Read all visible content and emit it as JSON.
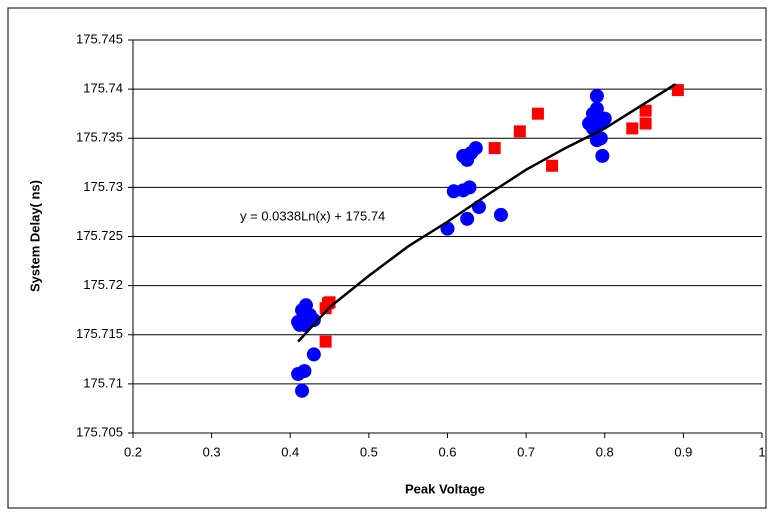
{
  "chart_data": {
    "type": "scatter",
    "x_label": "Peak Voltage",
    "y_label": "System Delay( ns)",
    "annotation": "y = 0.0338Ln(x) + 175.74",
    "xlim": [
      0.2,
      1
    ],
    "xticks": [
      0.2,
      0.3,
      0.4,
      0.5,
      0.6,
      0.7,
      0.8,
      0.9,
      1
    ],
    "ylim": [
      175.705,
      175.745
    ],
    "yticks": [
      175.705,
      175.71,
      175.715,
      175.72,
      175.725,
      175.73,
      175.735,
      175.74,
      175.745
    ],
    "grid": true,
    "series": [
      {
        "type": "scatter",
        "marker": "circle",
        "color": "#0000ff",
        "x": [
          0.41,
          0.415,
          0.42,
          0.42,
          0.425,
          0.418,
          0.412,
          0.43,
          0.41,
          0.418,
          0.415,
          0.43,
          0.6,
          0.608,
          0.62,
          0.628,
          0.62,
          0.625,
          0.63,
          0.636,
          0.625,
          0.64,
          0.668,
          0.78,
          0.785,
          0.79,
          0.79,
          0.795,
          0.8,
          0.79,
          0.795,
          0.797,
          0.785
        ],
        "values": [
          175.7163,
          175.7175,
          175.718,
          175.7165,
          175.717,
          175.716,
          175.716,
          175.7165,
          175.711,
          175.7113,
          175.7093,
          175.713,
          175.7258,
          175.7296,
          175.7297,
          175.73,
          175.7332,
          175.7328,
          175.7335,
          175.734,
          175.7268,
          175.728,
          175.7272,
          175.7365,
          175.7375,
          175.7393,
          175.738,
          175.7365,
          175.737,
          175.7348,
          175.735,
          175.7332,
          175.736
        ]
      },
      {
        "type": "scatter",
        "marker": "square",
        "color": "#ff0000",
        "x": [
          0.445,
          0.445,
          0.448,
          0.45,
          0.66,
          0.692,
          0.715,
          0.733,
          0.835,
          0.852,
          0.852,
          0.893
        ],
        "values": [
          175.7143,
          175.7177,
          175.7182,
          175.7183,
          175.734,
          175.7357,
          175.7375,
          175.7322,
          175.736,
          175.7365,
          175.7378,
          175.7399
        ]
      },
      {
        "type": "line",
        "color": "#000000",
        "x": [
          0.41,
          0.45,
          0.5,
          0.55,
          0.6,
          0.65,
          0.7,
          0.75,
          0.8,
          0.85,
          0.89
        ],
        "values": [
          175.7143,
          175.7178,
          175.721,
          175.724,
          175.7265,
          175.7292,
          175.7318,
          175.734,
          175.736,
          175.7385,
          175.7405
        ]
      }
    ]
  }
}
